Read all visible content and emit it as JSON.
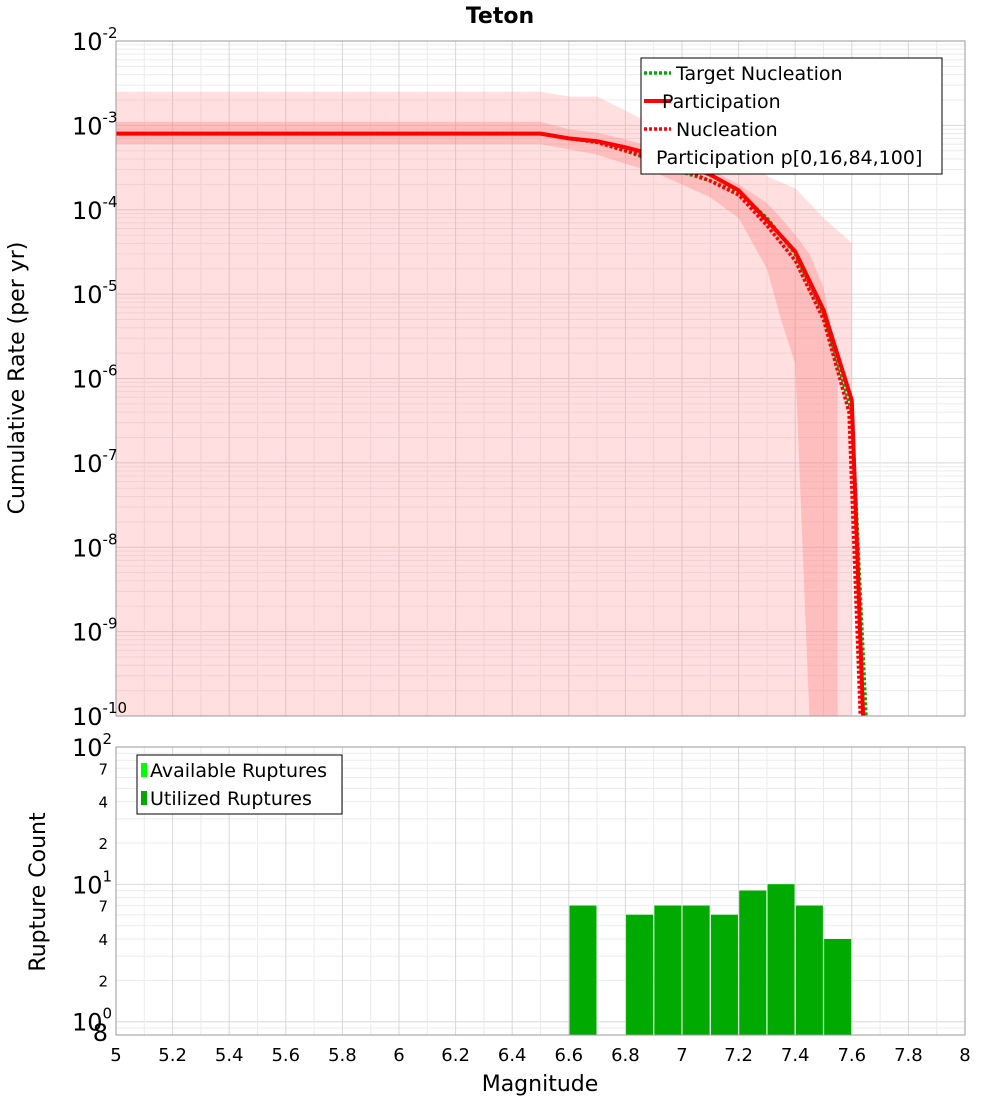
{
  "chart_data": [
    {
      "type": "line",
      "title": "Teton",
      "xlabel": "Magnitude",
      "ylabel": "Cumulative Rate (per yr)",
      "xlim": [
        5,
        8
      ],
      "ylim": [
        1e-10,
        0.01
      ],
      "yscale": "log",
      "y_tick_labels": [
        {
          "base": "10",
          "exp": "-10"
        },
        {
          "base": "10",
          "exp": "-9"
        },
        {
          "base": "10",
          "exp": "-8"
        },
        {
          "base": "10",
          "exp": "-7"
        },
        {
          "base": "10",
          "exp": "-6"
        },
        {
          "base": "10",
          "exp": "-5"
        },
        {
          "base": "10",
          "exp": "-4"
        },
        {
          "base": "10",
          "exp": "-3"
        },
        {
          "base": "10",
          "exp": "-2"
        }
      ],
      "grid": true,
      "legend_position": "top-right",
      "series": [
        {
          "name": "Target Nucleation",
          "style": "dotted",
          "color": "#00aa00",
          "x": [
            5.0,
            6.5,
            6.6,
            6.7,
            6.8,
            6.9,
            7.0,
            7.1,
            7.2,
            7.3,
            7.4,
            7.5,
            7.6,
            7.65
          ],
          "y": [
            0.0008,
            0.0008,
            0.0007,
            0.00063,
            0.0005,
            0.00038,
            0.00028,
            0.00022,
            0.00016,
            8e-05,
            3e-05,
            6e-06,
            4e-07,
            1e-10
          ]
        },
        {
          "name": "Participation",
          "style": "solid",
          "color": "#ff0000",
          "x": [
            5.0,
            6.5,
            6.6,
            6.7,
            6.8,
            6.9,
            7.0,
            7.1,
            7.2,
            7.3,
            7.4,
            7.5,
            7.6,
            7.64
          ],
          "y": [
            0.0008,
            0.0008,
            0.0007,
            0.00065,
            0.00055,
            0.00045,
            0.00035,
            0.00026,
            0.00017,
            7.5e-05,
            3.2e-05,
            6.5e-06,
            5.5e-07,
            1e-10
          ]
        },
        {
          "name": "Nucleation",
          "style": "dotted",
          "color": "#ff0000",
          "x": [
            5.0,
            6.5,
            6.6,
            6.7,
            6.8,
            6.9,
            7.0,
            7.1,
            7.2,
            7.3,
            7.4,
            7.5,
            7.59,
            7.63
          ],
          "y": [
            0.0008,
            0.0008,
            0.0007,
            0.00063,
            0.0005,
            0.0004,
            0.0003,
            0.00022,
            0.00015,
            6.5e-05,
            2.5e-05,
            5e-06,
            4e-07,
            1e-10
          ]
        }
      ],
      "bands": [
        {
          "name": "Participation p[0,16,84,100]",
          "color": "#ff8080",
          "outer": {
            "x": [
              5.0,
              6.5,
              6.6,
              6.7,
              6.8,
              6.9,
              7.0,
              7.1,
              7.2,
              7.3,
              7.4,
              7.5,
              7.6
            ],
            "upper": [
              0.0025,
              0.0025,
              0.0022,
              0.0022,
              0.0015,
              0.001,
              0.0008,
              0.0006,
              0.00045,
              0.00025,
              0.00018,
              8e-05,
              4e-05
            ],
            "lower": [
              1e-10,
              1e-10,
              1e-10,
              1e-10,
              1e-10,
              1e-10,
              1e-10,
              1e-10,
              1e-10,
              1e-10,
              1e-10,
              1e-10,
              1e-10
            ]
          },
          "inner": {
            "x": [
              5.0,
              6.5,
              6.6,
              6.7,
              6.8,
              6.9,
              7.0,
              7.1,
              7.2,
              7.3,
              7.35,
              7.4,
              7.45,
              7.5,
              7.55
            ],
            "upper": [
              0.0011,
              0.0011,
              0.0009,
              0.00082,
              0.00068,
              0.00055,
              0.00042,
              0.0003,
              0.0002,
              0.00012,
              8e-05,
              5e-05,
              3e-05,
              1.2e-05,
              1.5e-06
            ],
            "lower": [
              0.0006,
              0.0006,
              0.00052,
              0.00045,
              0.00035,
              0.00028,
              0.0002,
              0.00014,
              8e-05,
              2e-05,
              5e-06,
              1.5e-06,
              1e-10,
              1e-10,
              1e-10
            ]
          }
        }
      ]
    },
    {
      "type": "bar",
      "xlabel": "Magnitude",
      "ylabel": "Rupture Count",
      "xlim": [
        5,
        8
      ],
      "ylim": [
        0.8,
        100
      ],
      "yscale": "log",
      "x_ticks": [
        "5",
        "5.2",
        "5.4",
        "5.6",
        "5.8",
        "6",
        "6.2",
        "6.4",
        "6.6",
        "6.8",
        "7",
        "7.2",
        "7.4",
        "7.6",
        "7.8",
        "8"
      ],
      "y_tick_labels": [
        {
          "value": 1,
          "base": "10",
          "exp": "0"
        },
        {
          "value": 10,
          "base": "10",
          "exp": "1"
        },
        {
          "value": 100,
          "base": "10",
          "exp": "2"
        }
      ],
      "y_minor_labels": [
        {
          "value": 0.8,
          "label": "8"
        },
        {
          "value": 2,
          "label": "2"
        },
        {
          "value": 4,
          "label": "4"
        },
        {
          "value": 7,
          "label": "7"
        },
        {
          "value": 20,
          "label": "2"
        },
        {
          "value": 40,
          "label": "4"
        },
        {
          "value": 70,
          "label": "7"
        }
      ],
      "grid": true,
      "legend_position": "top-left",
      "bar_width": 0.095,
      "series": [
        {
          "name": "Available Ruptures",
          "color": "#00ff00",
          "x": [
            6.65,
            6.85,
            6.95,
            7.05,
            7.15,
            7.25,
            7.35,
            7.45,
            7.55
          ],
          "values": [
            7,
            6,
            7,
            7,
            6,
            9,
            10,
            7,
            4
          ]
        },
        {
          "name": "Utilized Ruptures",
          "color": "#00aa00",
          "x": [
            6.65,
            6.85,
            6.95,
            7.05,
            7.15,
            7.25,
            7.35,
            7.45,
            7.55
          ],
          "values": [
            7,
            6,
            7,
            7,
            6,
            9,
            10,
            7,
            4
          ]
        }
      ]
    }
  ]
}
